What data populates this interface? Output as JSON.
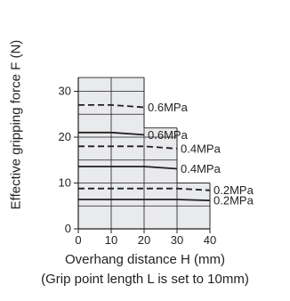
{
  "chart_data": {
    "type": "line",
    "xlabel": "Overhang distance H  (mm)",
    "subtitle": "(Grip point length L is set to 10mm)",
    "ylabel": "Effective gripping force  F (N)",
    "x_ticks": [
      "0",
      "10",
      "20",
      "30",
      "40"
    ],
    "y_ticks": [
      "0",
      "10",
      "20",
      "30"
    ],
    "xlim": [
      0,
      40
    ],
    "ylim": [
      0,
      33
    ],
    "grid": true,
    "shaded_regions": [
      {
        "x": [
          0,
          20
        ],
        "y": [
          0,
          33
        ]
      },
      {
        "x": [
          20,
          30
        ],
        "y": [
          0,
          22
        ]
      },
      {
        "x": [
          30,
          40
        ],
        "y": [
          0,
          10
        ]
      }
    ],
    "series": [
      {
        "name": "0.6MPa",
        "style": "dashed",
        "x": [
          0,
          10,
          20
        ],
        "y": [
          27,
          27,
          26.5
        ]
      },
      {
        "name": "0.6MPa",
        "style": "solid",
        "x": [
          0,
          10,
          20
        ],
        "y": [
          21,
          21,
          20.5
        ]
      },
      {
        "name": "0.4MPa",
        "style": "dashed",
        "x": [
          0,
          10,
          20,
          30
        ],
        "y": [
          18,
          18,
          18,
          17.5
        ]
      },
      {
        "name": "0.4MPa",
        "style": "solid",
        "x": [
          0,
          10,
          20,
          30
        ],
        "y": [
          13.6,
          13.6,
          13.6,
          13.1
        ]
      },
      {
        "name": "0.2MPa",
        "style": "dashed",
        "x": [
          0,
          10,
          20,
          30,
          40
        ],
        "y": [
          8.8,
          8.8,
          8.8,
          8.8,
          8.4
        ]
      },
      {
        "name": "0.2MPa",
        "style": "solid",
        "x": [
          0,
          10,
          20,
          30,
          40
        ],
        "y": [
          6.4,
          6.4,
          6.4,
          6.4,
          6.2
        ]
      }
    ]
  },
  "colors": {
    "region_fill": "#e8eaec",
    "grid": "#231f20",
    "line": "#231f20"
  }
}
